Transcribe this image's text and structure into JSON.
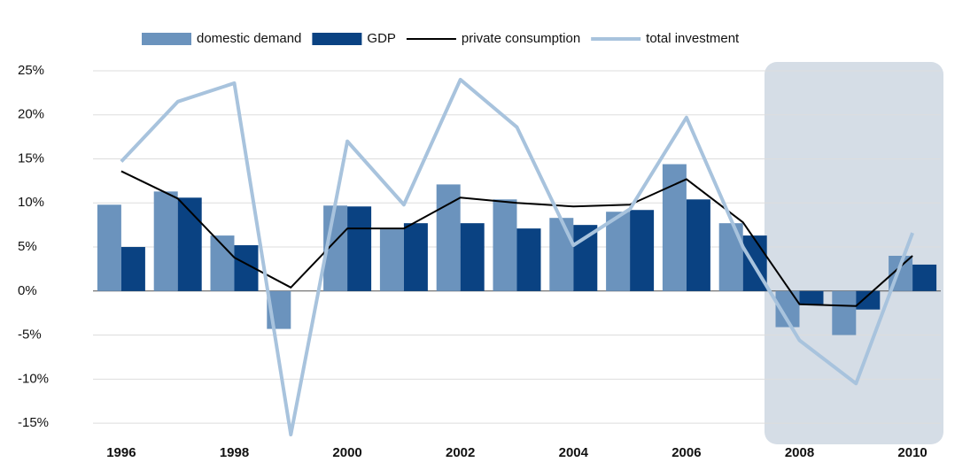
{
  "chart_data": {
    "type": "bar",
    "categories": [
      "1996",
      null,
      "1998",
      null,
      "2000",
      null,
      "2002",
      null,
      "2004",
      null,
      "2006",
      null,
      "2008",
      null,
      "2010"
    ],
    "series": [
      {
        "name": "domestic demand",
        "type": "bar",
        "color": "#6b93bd",
        "values": [
          9.8,
          11.3,
          6.3,
          -4.3,
          9.7,
          7.0,
          12.1,
          10.4,
          8.3,
          9.0,
          14.4,
          7.7,
          -4.1,
          -5.0,
          4.0
        ]
      },
      {
        "name": "GDP",
        "type": "bar",
        "color": "#0a4282",
        "values": [
          5.0,
          10.6,
          5.2,
          0,
          9.6,
          7.7,
          7.7,
          7.1,
          7.5,
          9.2,
          10.4,
          6.3,
          -1.5,
          -2.1,
          3.0
        ]
      },
      {
        "name": "private consumption",
        "type": "line",
        "color": "#000000",
        "values": [
          13.6,
          10.5,
          3.8,
          0.4,
          7.1,
          7.1,
          10.6,
          10.0,
          9.6,
          9.8,
          12.7,
          7.8,
          -1.5,
          -1.7,
          4.0
        ]
      },
      {
        "name": "total investment",
        "type": "line",
        "color": "#a8c3dd",
        "values": [
          14.7,
          21.5,
          23.6,
          -16.3,
          17.0,
          9.8,
          24.0,
          18.6,
          5.2,
          9.3,
          19.7,
          5.0,
          -5.6,
          -10.5,
          6.6
        ]
      }
    ],
    "ylim": [
      -16.5,
      25
    ],
    "yticks": [
      {
        "value": 25,
        "label": "25%"
      },
      {
        "value": 20,
        "label": "20%"
      },
      {
        "value": 15,
        "label": "15%"
      },
      {
        "value": 10,
        "label": "10%"
      },
      {
        "value": 5,
        "label": "5%"
      },
      {
        "value": 0,
        "label": "0%"
      },
      {
        "value": -5,
        "label": "-5%"
      },
      {
        "value": -10,
        "label": "-10%"
      },
      {
        "value": -15,
        "label": "-15%"
      }
    ],
    "grid": true,
    "legend": "top"
  }
}
